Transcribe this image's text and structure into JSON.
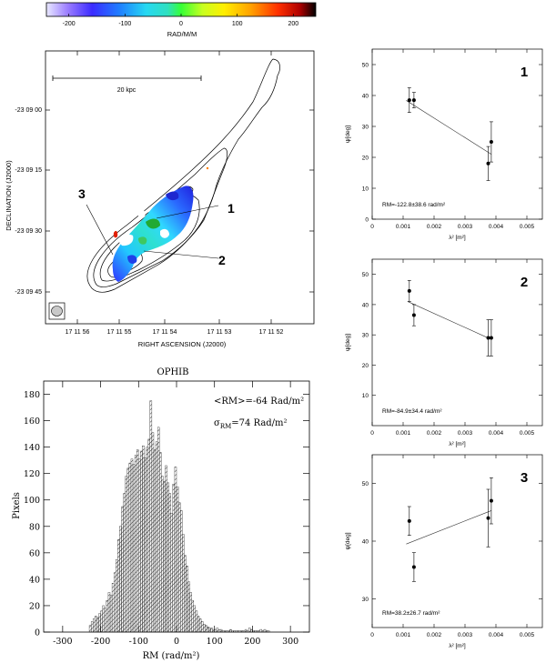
{
  "colorbar": {
    "label": "RAD/M/M",
    "ticks": [
      -200,
      -100,
      0,
      100,
      200
    ],
    "range": [
      -240,
      240
    ]
  },
  "rm_map": {
    "ylabel": "DECLINATION (J2000)",
    "xlabel": "RIGHT ASCENSION  (J2000)",
    "dec_ticks": [
      "-23 09 00",
      "-23 09 15",
      "-23 09 30",
      "-23 09 45"
    ],
    "ra_ticks": [
      "17 11 56",
      "17 11 55",
      "17 11 54",
      "17 11 53",
      "17 11 52"
    ],
    "scale_bar_label": "20 kpc",
    "region_labels": [
      "1",
      "2",
      "3"
    ]
  },
  "histogram": {
    "title": "OPHIB",
    "ylabel": "Pixels",
    "xlabel": "RM (rad/m²)",
    "annotation_mean": "<RM>=-64 Rad/m²",
    "annotation_sigma_prefix": "σ",
    "annotation_sigma_sub": "RM",
    "annotation_sigma_value": "=74 Rad/m²"
  },
  "chart_data": [
    {
      "type": "bar",
      "title": "OPHIB",
      "xlabel": "RM (rad/m²)",
      "ylabel": "Pixels",
      "xlim": [
        -350,
        350
      ],
      "ylim": [
        0,
        190
      ],
      "xticks": [
        -300,
        -200,
        -100,
        0,
        100,
        200,
        300
      ],
      "yticks": [
        0,
        20,
        40,
        60,
        80,
        100,
        120,
        140,
        160,
        180
      ],
      "bin_width": 5,
      "bins": [
        [
          -230,
          5
        ],
        [
          -225,
          8
        ],
        [
          -220,
          10
        ],
        [
          -215,
          12
        ],
        [
          -210,
          11
        ],
        [
          -205,
          14
        ],
        [
          -200,
          16
        ],
        [
          -195,
          20
        ],
        [
          -190,
          18
        ],
        [
          -185,
          24
        ],
        [
          -180,
          30
        ],
        [
          -175,
          28
        ],
        [
          -170,
          37
        ],
        [
          -165,
          45
        ],
        [
          -160,
          55
        ],
        [
          -155,
          70
        ],
        [
          -150,
          80
        ],
        [
          -145,
          95
        ],
        [
          -140,
          105
        ],
        [
          -135,
          118
        ],
        [
          -130,
          124
        ],
        [
          -125,
          128
        ],
        [
          -120,
          131
        ],
        [
          -115,
          127
        ],
        [
          -110,
          134
        ],
        [
          -105,
          138
        ],
        [
          -100,
          131
        ],
        [
          -95,
          137
        ],
        [
          -90,
          141
        ],
        [
          -85,
          132
        ],
        [
          -80,
          140
        ],
        [
          -75,
          146
        ],
        [
          -70,
          175
        ],
        [
          -65,
          151
        ],
        [
          -60,
          138
        ],
        [
          -55,
          144
        ],
        [
          -50,
          155
        ],
        [
          -45,
          136
        ],
        [
          -40,
          118
        ],
        [
          -35,
          114
        ],
        [
          -30,
          126
        ],
        [
          -25,
          113
        ],
        [
          -20,
          105
        ],
        [
          -15,
          90
        ],
        [
          -10,
          112
        ],
        [
          -5,
          125
        ],
        [
          0,
          110
        ],
        [
          5,
          98
        ],
        [
          10,
          92
        ],
        [
          15,
          74
        ],
        [
          20,
          58
        ],
        [
          25,
          50
        ],
        [
          30,
          38
        ],
        [
          35,
          30
        ],
        [
          40,
          24
        ],
        [
          45,
          20
        ],
        [
          50,
          16
        ],
        [
          55,
          12
        ],
        [
          60,
          10
        ],
        [
          65,
          8
        ],
        [
          70,
          6
        ],
        [
          75,
          5
        ],
        [
          80,
          4
        ],
        [
          85,
          3
        ],
        [
          90,
          3
        ],
        [
          95,
          2
        ],
        [
          100,
          2
        ],
        [
          105,
          3
        ],
        [
          110,
          2
        ],
        [
          115,
          2
        ],
        [
          120,
          1
        ],
        [
          125,
          1
        ],
        [
          130,
          1
        ],
        [
          135,
          1
        ],
        [
          140,
          2
        ],
        [
          145,
          1
        ],
        [
          150,
          1
        ],
        [
          155,
          1
        ],
        [
          160,
          1
        ],
        [
          165,
          1
        ],
        [
          170,
          1
        ],
        [
          175,
          1
        ],
        [
          180,
          2
        ],
        [
          185,
          1
        ],
        [
          190,
          3
        ],
        [
          195,
          2
        ],
        [
          200,
          1
        ],
        [
          205,
          1
        ],
        [
          210,
          1
        ],
        [
          215,
          1
        ],
        [
          220,
          2
        ],
        [
          225,
          1
        ],
        [
          230,
          2
        ],
        [
          235,
          1
        ],
        [
          240,
          1
        ]
      ]
    },
    {
      "type": "scatter",
      "panel": "1",
      "xlabel": "λ² [m²]",
      "ylabel": "ψ[deg]",
      "xlim": [
        0,
        0.0055
      ],
      "ylim": [
        0,
        55
      ],
      "xticks": [
        0,
        0.001,
        0.002,
        0.003,
        0.004,
        0.005
      ],
      "yticks": [
        0,
        10,
        20,
        30,
        40,
        50
      ],
      "annotation": "RM=-122.8±38.6  rad/m²",
      "points": [
        {
          "x": 0.0012,
          "y": 38.5,
          "err": 4.0
        },
        {
          "x": 0.00135,
          "y": 38.5,
          "err": 2.5
        },
        {
          "x": 0.00375,
          "y": 18.0,
          "err": 5.5
        },
        {
          "x": 0.00385,
          "y": 25.0,
          "err": 6.5
        }
      ],
      "fit": [
        [
          0.0011,
          38.4
        ],
        [
          0.00385,
          21.0
        ]
      ]
    },
    {
      "type": "scatter",
      "panel": "2",
      "xlabel": "λ² [m²]",
      "ylabel": "ψ[deg]",
      "xlim": [
        0,
        0.0055
      ],
      "ylim": [
        0,
        55
      ],
      "xticks": [
        0,
        0.001,
        0.002,
        0.003,
        0.004,
        0.005
      ],
      "yticks": [
        10,
        20,
        30,
        40,
        50
      ],
      "annotation": "RM=-84.9±34.4  rad/m²",
      "points": [
        {
          "x": 0.0012,
          "y": 44.5,
          "err": 3.5
        },
        {
          "x": 0.00135,
          "y": 36.5,
          "err": 3.5
        },
        {
          "x": 0.00375,
          "y": 29.0,
          "err": 6.0
        },
        {
          "x": 0.00385,
          "y": 29.0,
          "err": 6.0
        }
      ],
      "fit": [
        [
          0.00115,
          41.0
        ],
        [
          0.00385,
          28.5
        ]
      ]
    },
    {
      "type": "scatter",
      "panel": "3",
      "xlabel": "λ² [m²]",
      "ylabel": "ψ[deg]",
      "xlim": [
        0,
        0.0055
      ],
      "ylim": [
        25,
        55
      ],
      "xticks": [
        0,
        0.001,
        0.002,
        0.003,
        0.004,
        0.005
      ],
      "yticks": [
        30,
        40,
        50
      ],
      "annotation": "RM=38.2±26.7  rad/m²",
      "points": [
        {
          "x": 0.0012,
          "y": 43.5,
          "err": 2.5
        },
        {
          "x": 0.00135,
          "y": 35.5,
          "err": 2.5
        },
        {
          "x": 0.00375,
          "y": 44.0,
          "err": 5.0
        },
        {
          "x": 0.00385,
          "y": 47.0,
          "err": 4.0
        }
      ],
      "fit": [
        [
          0.0011,
          39.5
        ],
        [
          0.00385,
          45.3
        ]
      ]
    }
  ]
}
